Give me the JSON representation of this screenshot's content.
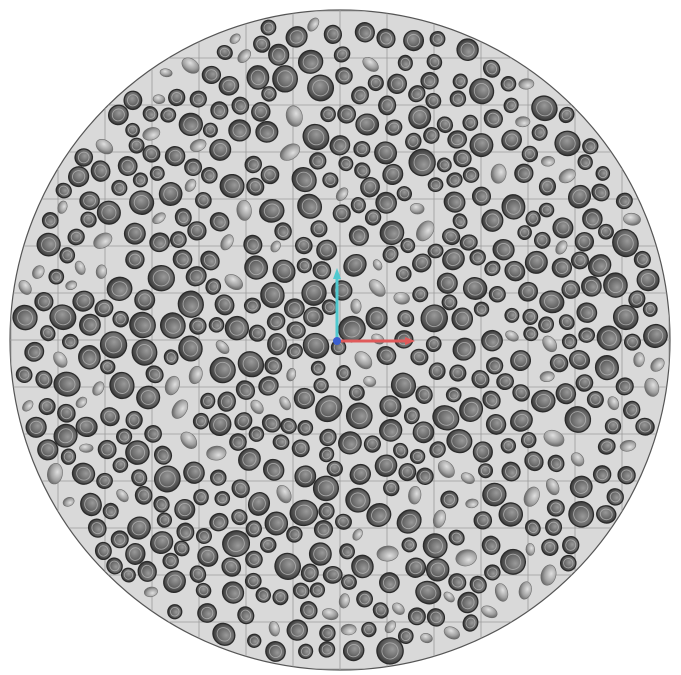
{
  "viewport": {
    "background_color": "#ffffff",
    "disc_fill": "#d9d9d9",
    "grid_color": "#9a9a9a",
    "rim_color": "#555555",
    "particle_fill": "#6e6e6e",
    "particle_rim": "#2a2a2a",
    "particle_highlight": "#b5b5b5",
    "chain_fill": "#a8a8a8",
    "chain_shadow": "#6a6a6a"
  },
  "axis_gizmo": {
    "x_axis_color": "#e05a5a",
    "y_axis_color": "#4fc9cf",
    "z_axis_color": "#3a5fd0",
    "axes": [
      "x-axis",
      "y-axis",
      "z-axis"
    ]
  }
}
